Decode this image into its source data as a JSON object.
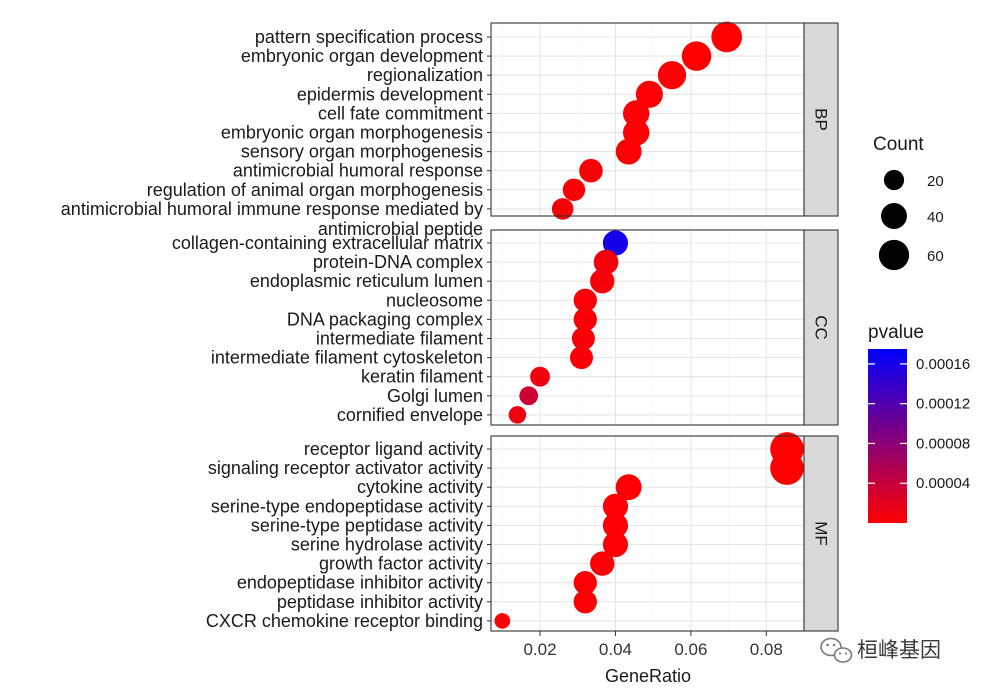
{
  "chart_data": {
    "type": "scatter",
    "xlabel": "GeneRatio",
    "xlim": [
      0.007,
      0.09
    ],
    "xticks": [
      0.02,
      0.04,
      0.06,
      0.08
    ],
    "xtick_labels": [
      "0.02",
      "0.04",
      "0.06",
      "0.08"
    ],
    "grid": true,
    "panels": [
      {
        "strip": "BP",
        "terms": [
          {
            "label": "pattern specification process",
            "ratio": 0.0695,
            "count": 62,
            "pvalue": 5e-07
          },
          {
            "label": "embryonic organ development",
            "ratio": 0.0615,
            "count": 56,
            "pvalue": 1e-06
          },
          {
            "label": "regionalization",
            "ratio": 0.055,
            "count": 50,
            "pvalue": 1e-06
          },
          {
            "label": "epidermis development",
            "ratio": 0.049,
            "count": 45,
            "pvalue": 2e-06
          },
          {
            "label": "cell fate commitment",
            "ratio": 0.0455,
            "count": 42,
            "pvalue": 2e-06
          },
          {
            "label": "embryonic organ morphogenesis",
            "ratio": 0.0455,
            "count": 42,
            "pvalue": 2e-06
          },
          {
            "label": "sensory organ morphogenesis",
            "ratio": 0.0435,
            "count": 40,
            "pvalue": 3e-06
          },
          {
            "label": "antimicrobial humoral response",
            "ratio": 0.0335,
            "count": 31,
            "pvalue": 4e-06
          },
          {
            "label": "regulation of animal organ morphogenesis",
            "ratio": 0.029,
            "count": 27,
            "pvalue": 4e-06
          },
          {
            "label": "antimicrobial humoral immune response mediated by",
            "ratio": 0.026,
            "count": 24,
            "pvalue": 5e-06
          },
          {
            "label": "antimicrobial peptide",
            "ratio": null,
            "count": null,
            "pvalue": null
          }
        ]
      },
      {
        "strip": "CC",
        "terms": [
          {
            "label": "collagen-containing extracellular matrix",
            "ratio": 0.04,
            "count": 37,
            "pvalue": 0.00016
          },
          {
            "label": "protein-DNA complex",
            "ratio": 0.0375,
            "count": 35,
            "pvalue": 8e-06
          },
          {
            "label": "endoplasmic reticulum lumen",
            "ratio": 0.0365,
            "count": 34,
            "pvalue": 6e-06
          },
          {
            "label": "nucleosome",
            "ratio": 0.032,
            "count": 30,
            "pvalue": 3e-06
          },
          {
            "label": "DNA packaging complex",
            "ratio": 0.032,
            "count": 30,
            "pvalue": 4e-06
          },
          {
            "label": "intermediate filament",
            "ratio": 0.0315,
            "count": 29,
            "pvalue": 4e-06
          },
          {
            "label": "intermediate filament cytoskeleton",
            "ratio": 0.031,
            "count": 29,
            "pvalue": 4e-06
          },
          {
            "label": "keratin filament",
            "ratio": 0.02,
            "count": 19,
            "pvalue": 1e-05
          },
          {
            "label": "Golgi lumen",
            "ratio": 0.017,
            "count": 16,
            "pvalue": 3.5e-05
          },
          {
            "label": "cornified envelope",
            "ratio": 0.014,
            "count": 13,
            "pvalue": 1.2e-05
          }
        ]
      },
      {
        "strip": "MF",
        "terms": [
          {
            "label": "receptor ligand activity",
            "ratio": 0.0855,
            "count": 78,
            "pvalue": 2e-07
          },
          {
            "label": "signaling receptor activator activity",
            "ratio": 0.0855,
            "count": 78,
            "pvalue": 2e-07
          },
          {
            "label": "cytokine activity",
            "ratio": 0.0435,
            "count": 40,
            "pvalue": 2e-06
          },
          {
            "label": "serine-type endopeptidase activity",
            "ratio": 0.04,
            "count": 37,
            "pvalue": 2e-06
          },
          {
            "label": "serine-type peptidase activity",
            "ratio": 0.04,
            "count": 37,
            "pvalue": 2e-06
          },
          {
            "label": "serine hydrolase activity",
            "ratio": 0.04,
            "count": 37,
            "pvalue": 2e-06
          },
          {
            "label": "growth factor activity",
            "ratio": 0.0365,
            "count": 34,
            "pvalue": 3e-06
          },
          {
            "label": "endopeptidase inhibitor activity",
            "ratio": 0.032,
            "count": 30,
            "pvalue": 3e-06
          },
          {
            "label": "peptidase inhibitor activity",
            "ratio": 0.032,
            "count": 30,
            "pvalue": 3e-06
          },
          {
            "label": "CXCR chemokine receptor binding",
            "ratio": 0.01,
            "count": 9,
            "pvalue": 2e-06
          }
        ]
      }
    ],
    "legend": {
      "size_title": "Count",
      "size_entries": [
        20,
        40,
        60
      ],
      "size_labels": [
        "20",
        "40",
        "60"
      ],
      "color_title": "pvalue",
      "color_low": "#ff0000",
      "color_high": "#0000ff",
      "color_range": [
        0,
        0.000175
      ],
      "color_breaks": [
        4e-05,
        8e-05,
        0.00012,
        0.00016
      ],
      "color_labels": [
        "0.00004",
        "0.00008",
        "0.00012",
        "0.00016"
      ],
      "placement": "right"
    }
  },
  "watermark": {
    "text": "桓峰基因",
    "icon": "wechat-icon"
  }
}
